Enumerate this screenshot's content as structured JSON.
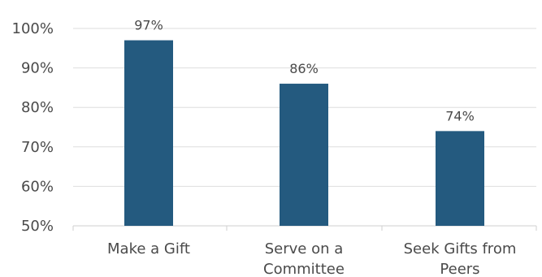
{
  "chart_data": {
    "type": "bar",
    "categories": [
      "Make a Gift",
      "Serve on a Committee",
      "Seek Gifts from Peers"
    ],
    "category_lines": [
      [
        "Make a Gift"
      ],
      [
        "Serve on a",
        "Committee"
      ],
      [
        "Seek Gifts from",
        "Peers"
      ]
    ],
    "values": [
      97,
      86,
      74
    ],
    "value_labels": [
      "97%",
      "86%",
      "74%"
    ],
    "y_ticks": [
      50,
      60,
      70,
      80,
      90,
      100
    ],
    "y_tick_labels": [
      "50%",
      "60%",
      "70%",
      "80%",
      "90%",
      "100%"
    ],
    "ylim": [
      50,
      100
    ],
    "title": "",
    "xlabel": "",
    "ylabel": "",
    "grid": true,
    "legend": "none",
    "bar_color": "#245A7F"
  }
}
